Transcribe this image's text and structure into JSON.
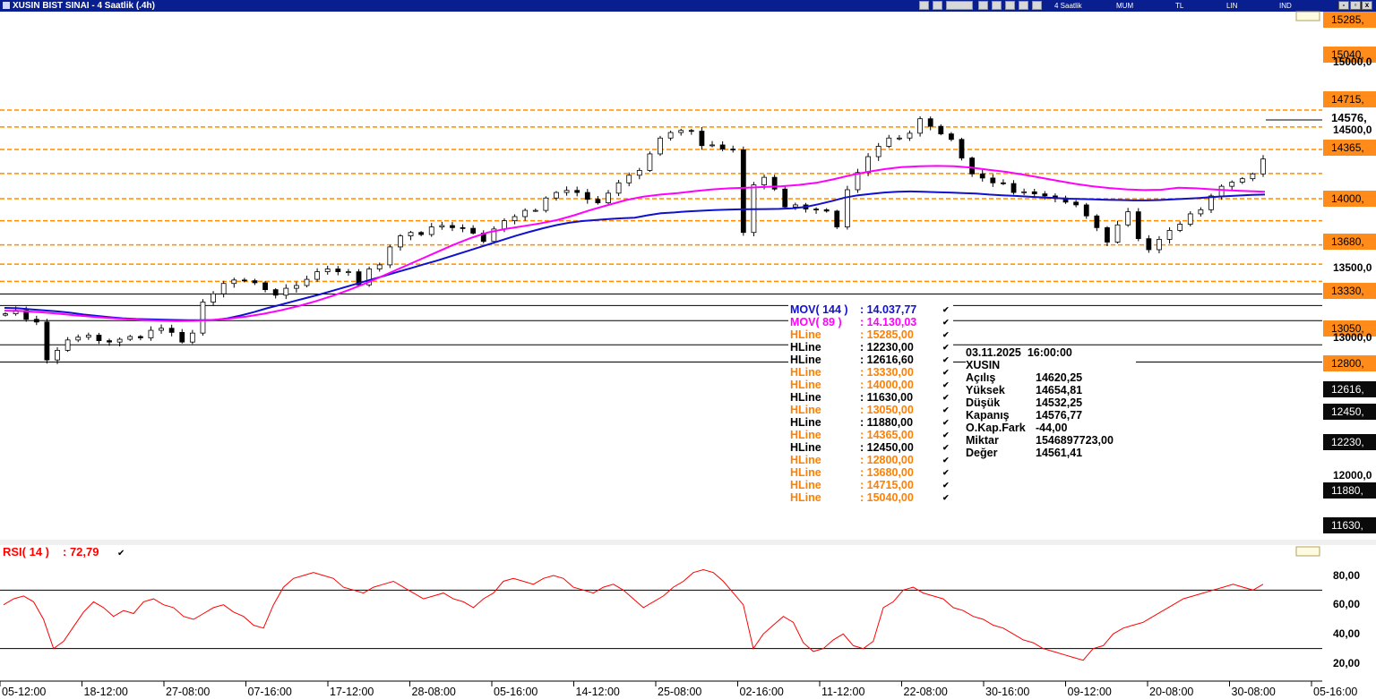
{
  "window": {
    "title": "XUSIN BIST SINAI - 4 Saatlik (.4h)",
    "toolbar_modes": [
      "4 Saatlik",
      "MUM",
      "TL",
      "LIN",
      "IND"
    ],
    "minimize": "-",
    "restore": "▫",
    "close": "x"
  },
  "chart_data": {
    "type": "candlestick",
    "symbol": "XUSIN",
    "x_tick_labels": [
      "05-12:00",
      "18-12:00",
      "27-08:00",
      "07-16:00",
      "17-12:00",
      "28-08:00",
      "05-16:00",
      "14-12:00",
      "25-08:00",
      "02-16:00",
      "11-12:00",
      "22-08:00",
      "30-16:00",
      "09-12:00",
      "20-08:00",
      "30-08:00",
      "05-16:00"
    ],
    "y_tick_labels": [
      "15285,",
      "15040,",
      "15000,0",
      "14715,",
      "14576,",
      "14500,0",
      "14365,",
      "14000,",
      "13680,",
      "13500,0",
      "13330,",
      "13050,",
      "13000,0",
      "12800,",
      "12616,",
      "12450,",
      "12230,",
      "12000,0",
      "11880,",
      "11630,"
    ],
    "y_range": [
      11500,
      15350
    ],
    "last_price": 14576.77,
    "last_price_label": "14576,",
    "hlines_orange": [
      15285,
      15040,
      14715,
      14365,
      14000,
      13680,
      13330,
      13050,
      12800
    ],
    "hlines_black": [
      12616.6,
      12450,
      12230,
      11880,
      11630
    ],
    "close_series": [
      12330,
      12380,
      12250,
      12210,
      11660,
      11800,
      11950,
      11990,
      12020,
      11940,
      11920,
      11960,
      12000,
      11980,
      12090,
      12120,
      12060,
      11920,
      12050,
      12500,
      12620,
      12770,
      12820,
      12810,
      12780,
      12680,
      12600,
      12700,
      12740,
      12830,
      12940,
      12980,
      12940,
      12940,
      12750,
      12980,
      13040,
      13300,
      13460,
      13510,
      13480,
      13590,
      13610,
      13580,
      13570,
      13500,
      13380,
      13560,
      13680,
      13740,
      13830,
      13830,
      14010,
      14090,
      14120,
      14090,
      13990,
      13940,
      14080,
      14230,
      14340,
      14410,
      14650,
      14880,
      14960,
      14990,
      14980,
      14770,
      14780,
      14720,
      14710,
      13510,
      14200,
      14310,
      14140,
      13880,
      13910,
      13850,
      13840,
      13820,
      13590,
      14130,
      14380,
      14610,
      14760,
      14880,
      14880,
      14950,
      15160,
      15050,
      14940,
      14860,
      14590,
      14360,
      14300,
      14230,
      14220,
      14090,
      14100,
      14070,
      14040,
      14010,
      13950,
      13910,
      13750,
      13580,
      13370,
      13620,
      13810,
      13420,
      13260,
      13410,
      13540,
      13630,
      13780,
      13840,
      14040,
      14180,
      14240,
      14290,
      14360,
      14576
    ],
    "series": [
      {
        "name": "MOV( 144 )",
        "value_label": ": 14.037,77",
        "color": "#1010d0",
        "values": [
          12415,
          12410,
          12395,
          12380,
          12365,
          12345,
          12320,
          12300,
          12280,
          12265,
          12255,
          12250,
          12245,
          12240,
          12238,
          12236,
          12240,
          12265,
          12305,
          12355,
          12410,
          12460,
          12510,
          12560,
          12610,
          12665,
          12720,
          12775,
          12830,
          12885,
          12940,
          12995,
          13050,
          13105,
          13165,
          13225,
          13285,
          13345,
          13405,
          13465,
          13520,
          13570,
          13615,
          13650,
          13675,
          13690,
          13705,
          13715,
          13725,
          13760,
          13790,
          13800,
          13815,
          13825,
          13835,
          13840,
          13845,
          13848,
          13850,
          13852,
          13860,
          13880,
          13920,
          13965,
          14015,
          14050,
          14070,
          14090,
          14100,
          14105,
          14100,
          14095,
          14090,
          14080,
          14075,
          14060,
          14050,
          14040,
          14030,
          14020,
          14010,
          14000,
          13995,
          13990,
          13985,
          13980,
          13975,
          13975,
          13980,
          13990,
          14000,
          14010,
          14025,
          14035,
          14045,
          14055,
          14060
        ]
      },
      {
        "name": "MOV( 89 )",
        "value_label": ": 14.130,03",
        "color": "#ff00ff",
        "values": [
          12375,
          12370,
          12355,
          12335,
          12310,
          12290,
          12270,
          12255,
          12240,
          12230,
          12225,
          12228,
          12240,
          12260,
          12290,
          12330,
          12380,
          12440,
          12510,
          12590,
          12680,
          12780,
          12890,
          13000,
          13110,
          13220,
          13330,
          13430,
          13510,
          13560,
          13600,
          13640,
          13690,
          13760,
          13840,
          13910,
          13980,
          14030,
          14060,
          14080,
          14110,
          14135,
          14150,
          14160,
          14170,
          14180,
          14200,
          14230,
          14280,
          14340,
          14390,
          14430,
          14460,
          14470,
          14475,
          14470,
          14450,
          14420,
          14390,
          14350,
          14305,
          14260,
          14215,
          14180,
          14155,
          14135,
          14125,
          14130,
          14160,
          14150,
          14135,
          14120,
          14110,
          14100
        ]
      }
    ],
    "rsi": {
      "name": "RSI( 14 )",
      "value_label": ": 72,79",
      "y_tick_labels": [
        "80,00",
        "60,00",
        "40,00",
        "20,00"
      ],
      "ylim": [
        10,
        95
      ],
      "ref_lines": [
        70,
        30
      ],
      "values": [
        60,
        64,
        66,
        62,
        50,
        30,
        35,
        45,
        55,
        62,
        58,
        52,
        56,
        54,
        62,
        64,
        60,
        58,
        52,
        50,
        54,
        58,
        60,
        55,
        52,
        46,
        44,
        60,
        72,
        78,
        80,
        82,
        80,
        78,
        72,
        70,
        68,
        72,
        74,
        76,
        72,
        68,
        64,
        66,
        68,
        64,
        62,
        58,
        64,
        68,
        76,
        78,
        76,
        74,
        78,
        80,
        78,
        72,
        70,
        68,
        72,
        74,
        70,
        64,
        58,
        62,
        66,
        72,
        76,
        82,
        84,
        82,
        76,
        68,
        60,
        30,
        40,
        46,
        52,
        48,
        34,
        28,
        30,
        36,
        40,
        32,
        30,
        35,
        58,
        62,
        70,
        72,
        68,
        66,
        64,
        58,
        56,
        52,
        50,
        46,
        44,
        40,
        36,
        34,
        30,
        28,
        26,
        24,
        22,
        30,
        32,
        40,
        44,
        46,
        48,
        52,
        56,
        60,
        64,
        66,
        68,
        70,
        72,
        74,
        72,
        70,
        74
      ]
    },
    "legend_rows": [
      {
        "label": "MOV( 144 )",
        "value": ": 14.037,77",
        "color": "#1010d0"
      },
      {
        "label": "MOV( 89 )",
        "value": ": 14.130,03",
        "color": "#ff00ff"
      },
      {
        "label": "HLine",
        "value": ": 15285,00",
        "color": "#ff8000"
      },
      {
        "label": "HLine",
        "value": ": 12230,00",
        "color": "#000000"
      },
      {
        "label": "HLine",
        "value": ": 12616,60",
        "color": "#000000"
      },
      {
        "label": "HLine",
        "value": ": 13330,00",
        "color": "#ff8000"
      },
      {
        "label": "HLine",
        "value": ": 14000,00",
        "color": "#ff8000"
      },
      {
        "label": "HLine",
        "value": ": 11630,00",
        "color": "#000000"
      },
      {
        "label": "HLine",
        "value": ": 13050,00",
        "color": "#ff8000"
      },
      {
        "label": "HLine",
        "value": ": 11880,00",
        "color": "#000000"
      },
      {
        "label": "HLine",
        "value": ": 14365,00",
        "color": "#ff8000"
      },
      {
        "label": "HLine",
        "value": ": 12450,00",
        "color": "#000000"
      },
      {
        "label": "HLine",
        "value": ": 12800,00",
        "color": "#ff8000"
      },
      {
        "label": "HLine",
        "value": ": 13680,00",
        "color": "#ff8000"
      },
      {
        "label": "HLine",
        "value": ": 14715,00",
        "color": "#ff8000"
      },
      {
        "label": "HLine",
        "value": ": 15040,00",
        "color": "#ff8000"
      }
    ],
    "info_box": {
      "datetime": "03.11.2025  16:00:00",
      "symbol": "XUSIN",
      "rows": [
        {
          "label": "Açılış",
          "value": "14620,25"
        },
        {
          "label": "Yüksek",
          "value": "14654,81"
        },
        {
          "label": "Düşük",
          "value": "14532,25"
        },
        {
          "label": "Kapanış",
          "value": "14576,77"
        },
        {
          "label": "O.Kap.Fark",
          "value": "-44,00"
        },
        {
          "label": "Miktar",
          "value": "1546897723,00"
        },
        {
          "label": "Değer",
          "value": "14561,41"
        }
      ]
    }
  }
}
